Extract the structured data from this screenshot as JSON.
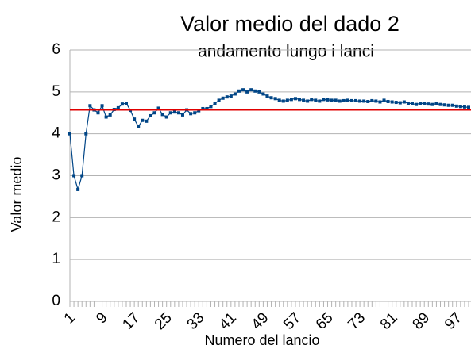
{
  "chart_data": {
    "type": "line",
    "title": "Valor medio del dado 2",
    "subtitle": "andamento lungo i lanci",
    "x_label": "Numero del lancio",
    "y_label": "Valor medio",
    "categories": [
      "1",
      null,
      null,
      null,
      null,
      null,
      null,
      null,
      "9",
      null,
      null,
      null,
      null,
      null,
      null,
      null,
      "17",
      null,
      null,
      null,
      null,
      null,
      null,
      null,
      "25",
      null,
      null,
      null,
      null,
      null,
      null,
      null,
      "33",
      null,
      null,
      null,
      null,
      null,
      null,
      null,
      "41",
      null,
      null,
      null,
      null,
      null,
      null,
      null,
      "49",
      null,
      null,
      null,
      null,
      null,
      null,
      null,
      "57",
      null,
      null,
      null,
      null,
      null,
      null,
      null,
      "65",
      null,
      null,
      null,
      null,
      null,
      null,
      null,
      "73",
      null,
      null,
      null,
      null,
      null,
      null,
      null,
      "81",
      null,
      null,
      null,
      null,
      null,
      null,
      null,
      "89",
      null,
      null,
      null,
      null,
      null,
      null,
      null,
      "97",
      null,
      null,
      null
    ],
    "series": [
      {
        "color": "#004586",
        "values": [
          4,
          3,
          2.67,
          3,
          4,
          4.67,
          4.57,
          4.5,
          4.67,
          4.4,
          4.45,
          4.58,
          4.62,
          4.71,
          4.73,
          4.56,
          4.35,
          4.17,
          4.32,
          4.3,
          4.43,
          4.5,
          4.61,
          4.46,
          4.4,
          4.5,
          4.52,
          4.5,
          4.45,
          4.57,
          4.48,
          4.5,
          4.55,
          4.6,
          4.6,
          4.65,
          4.72,
          4.8,
          4.85,
          4.88,
          4.9,
          4.95,
          5.02,
          5.05,
          5,
          5.05,
          5.02,
          5,
          4.95,
          4.9,
          4.86,
          4.84,
          4.8,
          4.78,
          4.8,
          4.82,
          4.84,
          4.82,
          4.8,
          4.78,
          4.82,
          4.8,
          4.78,
          4.82,
          4.81,
          4.8,
          4.8,
          4.78,
          4.79,
          4.8,
          4.79,
          4.79,
          4.78,
          4.78,
          4.77,
          4.79,
          4.78,
          4.76,
          4.8,
          4.77,
          4.76,
          4.75,
          4.74,
          4.76,
          4.73,
          4.72,
          4.7,
          4.73,
          4.72,
          4.71,
          4.7,
          4.72,
          4.7,
          4.69,
          4.68,
          4.68,
          4.66,
          4.65,
          4.64,
          4.63
        ]
      }
    ],
    "reference_line": {
      "value": 4.57,
      "color": "#e00000"
    },
    "ylim": [
      0,
      6
    ],
    "yticks": [
      0,
      1,
      2,
      3,
      4,
      5,
      6
    ],
    "grid": true
  }
}
